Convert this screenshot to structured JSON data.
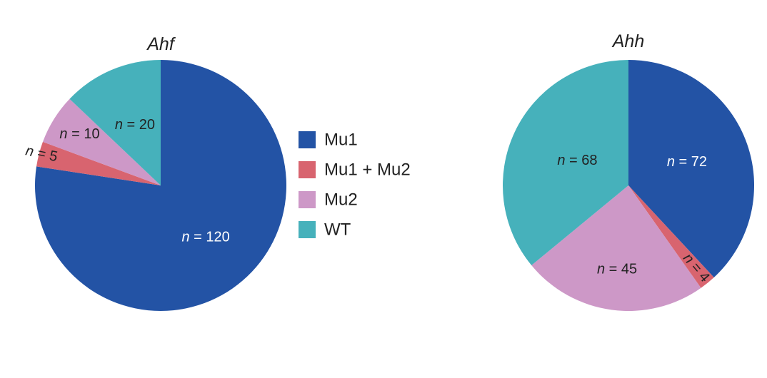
{
  "legend": {
    "items": [
      {
        "label": "Mu1",
        "color": "#2353a5"
      },
      {
        "label": "Mu1 + Mu2",
        "color": "#d8646f"
      },
      {
        "label": "Mu2",
        "color": "#cd98c7"
      },
      {
        "label": "WT",
        "color": "#46b1bb"
      }
    ]
  },
  "chart_data": [
    {
      "type": "pie",
      "title": "Ahf",
      "categories": [
        "Mu1",
        "Mu1 + Mu2",
        "Mu2",
        "WT"
      ],
      "values": [
        120,
        5,
        10,
        20
      ],
      "labels": [
        "n = 120",
        "n = 5",
        "n = 10",
        "n = 20"
      ],
      "start": "12 o'clock",
      "direction": "clockwise"
    },
    {
      "type": "pie",
      "title": "Ahh",
      "categories": [
        "Mu1",
        "Mu1 + Mu2",
        "Mu2",
        "WT"
      ],
      "values": [
        72,
        4,
        45,
        68
      ],
      "labels": [
        "n = 72",
        "n = 4",
        "n = 45",
        "n = 68"
      ],
      "start": "12 o'clock",
      "direction": "clockwise"
    }
  ]
}
